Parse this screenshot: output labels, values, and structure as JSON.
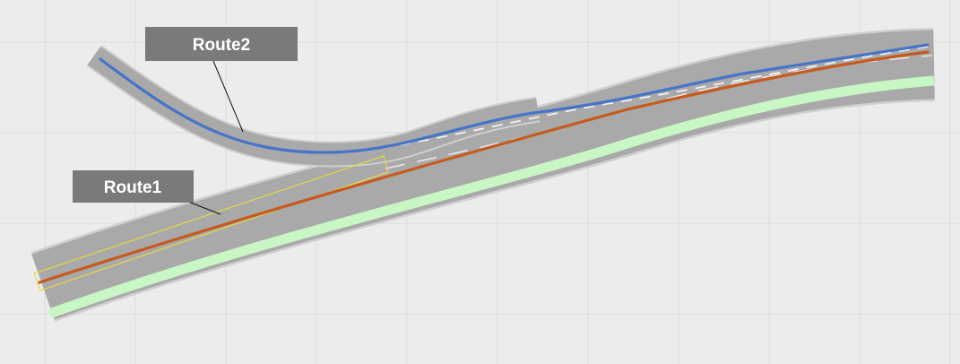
{
  "colors": {
    "background": "#ececec",
    "grid": "#dcdcdc",
    "road_surface": "#a9a9a9",
    "road_edge": "#cfcfcf",
    "lane_dash": "#e6e6e6",
    "merge_dash": "#f2f2f2",
    "highlight_lane": "#c8f7c5",
    "selection_outline": "#e6d84a",
    "route1": "#c65a1e",
    "route2": "#4674c8",
    "label_box": "#7a7a7a",
    "label_text": "#ffffff",
    "leader_line": "#111111"
  },
  "routes": [
    {
      "id": "route1",
      "label": "Route1",
      "color_key": "route1"
    },
    {
      "id": "route2",
      "label": "Route2",
      "color_key": "route2"
    }
  ]
}
